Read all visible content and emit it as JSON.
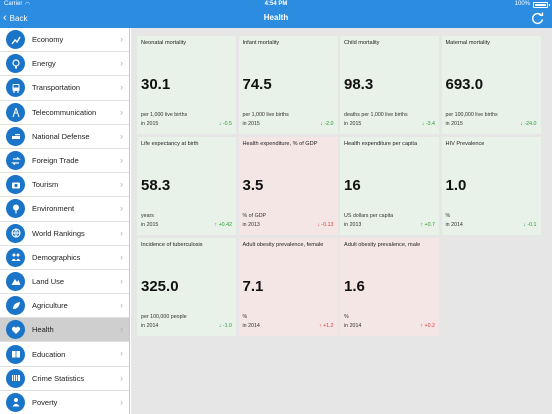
{
  "status_bar": {
    "carrier": "Carrier",
    "time": "4:54 PM",
    "battery": "100%",
    "battery_level": 1.0
  },
  "nav": {
    "back_label": "Back",
    "title": "Health"
  },
  "sidebar": {
    "items": [
      {
        "label": "Economy",
        "icon": "economy-icon",
        "active": false
      },
      {
        "label": "Energy",
        "icon": "energy-icon",
        "active": false
      },
      {
        "label": "Transportation",
        "icon": "bus-icon",
        "active": false
      },
      {
        "label": "Telecommunication",
        "icon": "telecom-icon",
        "active": false
      },
      {
        "label": "National Defense",
        "icon": "defense-icon",
        "active": false
      },
      {
        "label": "Foreign Trade",
        "icon": "trade-icon",
        "active": false
      },
      {
        "label": "Tourism",
        "icon": "camera-icon",
        "active": false
      },
      {
        "label": "Environment",
        "icon": "tree-icon",
        "active": false
      },
      {
        "label": "World Rankings",
        "icon": "globe-icon",
        "active": false
      },
      {
        "label": "Demographics",
        "icon": "people-icon",
        "active": false
      },
      {
        "label": "Land Use",
        "icon": "land-icon",
        "active": false
      },
      {
        "label": "Agriculture",
        "icon": "leaf-icon",
        "active": false
      },
      {
        "label": "Health",
        "icon": "health-icon",
        "active": true
      },
      {
        "label": "Education",
        "icon": "book-icon",
        "active": false
      },
      {
        "label": "Crime Statistics",
        "icon": "crime-icon",
        "active": false
      },
      {
        "label": "Poverty",
        "icon": "poverty-icon",
        "active": false
      }
    ]
  },
  "cards": [
    {
      "title": "Neonatal mortality",
      "value": "30.1",
      "unit": "per 1,000 live births",
      "year": "in 2015",
      "change": "-0.5",
      "direction": "down",
      "tone": "green"
    },
    {
      "title": "Infant mortality",
      "value": "74.5",
      "unit": "per 1,000 live births",
      "year": "in 2015",
      "change": "-2.0",
      "direction": "down",
      "tone": "green"
    },
    {
      "title": "Child mortality",
      "value": "98.3",
      "unit": "deaths per 1,000 live births",
      "year": "in 2015",
      "change": "-3.4",
      "direction": "down",
      "tone": "green"
    },
    {
      "title": "Maternal mortality",
      "value": "693.0",
      "unit": "per 100,000 live births",
      "year": "in 2015",
      "change": "-24.0",
      "direction": "down",
      "tone": "green"
    },
    {
      "title": "Life expectancy at birth",
      "value": "58.3",
      "unit": "years",
      "year": "in 2015",
      "change": "+0.42",
      "direction": "up-good",
      "tone": "green"
    },
    {
      "title": "Health expenditure, % of GDP",
      "value": "3.5",
      "unit": "% of GDP",
      "year": "in 2013",
      "change": "-0.13",
      "direction": "down-bad",
      "tone": "red"
    },
    {
      "title": "Health expenditure per capita",
      "value": "16",
      "unit": "US dollars per capita",
      "year": "in 2013",
      "change": "+0.7",
      "direction": "up-good",
      "tone": "green"
    },
    {
      "title": "HIV Prevalence",
      "value": "1.0",
      "unit": "%",
      "year": "in 2014",
      "change": "-0.1",
      "direction": "down",
      "tone": "green"
    },
    {
      "title": "Incidence of tuberculosis",
      "value": "325.0",
      "unit": "per 100,000 people",
      "year": "in 2014",
      "change": "-1.0",
      "direction": "down",
      "tone": "green"
    },
    {
      "title": "Adult obesity prevalence, female",
      "value": "7.1",
      "unit": "%",
      "year": "in 2014",
      "change": "+1.2",
      "direction": "up-bad",
      "tone": "red"
    },
    {
      "title": "Adult obesity prevalence, male",
      "value": "1.6",
      "unit": "%",
      "year": "in 2014",
      "change": "+0.2",
      "direction": "up-bad",
      "tone": "red"
    }
  ],
  "colors": {
    "accent": "#2b8ce0",
    "icon_bg": "#1a74c7",
    "good": "#2e9b3a",
    "bad": "#e03b3b",
    "card_green": "#e8f2e8",
    "card_red": "#f5e6e6"
  }
}
